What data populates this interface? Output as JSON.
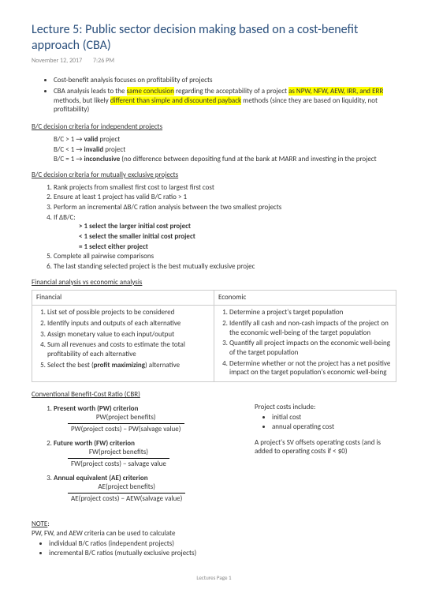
{
  "title": "Lecture 5: Public sector decision making based on a cost-benefit approach (CBA)",
  "date": "November 12, 2017",
  "time": "7:26 PM",
  "top_bullets": [
    "Cost-benefit analysis focuses on profitability of projects",
    "CBA analysis leads to the "
  ],
  "hl1": "same conclusion",
  "mid1": " regarding the acceptability of a project ",
  "hl2": "as NPW, NFW, AEW, IRR, and ERR",
  "mid2": " methods, but likely ",
  "hl3": "different than simple and discounted payback",
  "tail": " methods (since they are based on liquidity, not profitability)",
  "sec_independent": "B/C decision criteria for independent projects",
  "criteria": {
    "valid_pre": "B/C > 1 → ",
    "valid_b": "valid",
    "valid_post": " project",
    "invalid_pre": "B/C < 1 → ",
    "invalid_b": "invalid",
    "invalid_post": " project",
    "inc_pre": "B/C = 1 → ",
    "inc_b": "inconclusive",
    "inc_post": " (no difference between depositing fund at the bank at MARR and investing in the project"
  },
  "sec_mutual": "B/C decision criteria for mutually exclusive projects",
  "mutual_steps": [
    "Rank projects from smallest first cost to largest first cost",
    "Ensure at least 1 project has valid B/C ratio > 1",
    "Perform an incremental ΔB/C ration analysis between the two smallest projects",
    "If ΔB/C:",
    "Complete all pairwise comparisons",
    "The last standing selected project is the best mutually exclusive projec"
  ],
  "delta_rules": {
    "a_pre": "> 1 select the ",
    "a_b": "larger initial cost project",
    "b_pre": "< 1 select the ",
    "b_b": "smaller initial cost project",
    "c_pre": "= 1 select ",
    "c_b": "either project"
  },
  "sec_fa": "Financial analysis vs economic analysis",
  "fa_fin_h": "Financial",
  "fa_eco_h": "Economic",
  "fa_fin": [
    "List set of possible projects to be considered",
    "Identify inputs and outputs of each alternative",
    "Assign monetary value to each input/output",
    "Sum all revenues and costs to estimate the total profitability of each alternative"
  ],
  "fa_fin5_pre": "Select the best (",
  "fa_fin5_b": "profit maximizing",
  "fa_fin5_post": ") alternative",
  "fa_eco": [
    "Determine a project's target population",
    "Identify all cash and non-cash impacts of the project on the economic well-being of the target population",
    "Quantify all project impacts on the economic well-being of the target population",
    "Determine whether or not the project has a net positive impact on the target population's economic well-being"
  ],
  "sec_cbr": "Conventional Benefit-Cost Ratio (CBR)",
  "cbr_items": {
    "pw_t": "Present worth (PW) criterion",
    "pw_num": "PW(project benefits)",
    "pw_den": "PW(project costs) − PW(salvage value)",
    "fw_t": "Future worth (FW) criterion",
    "fw_num": "FW(project benefits)",
    "fw_den": "FW(project costs) − salvage value",
    "ae_t": "Annual equivalent (AE) criterion",
    "ae_num": "AE(project benefits)",
    "ae_den": "AE(project costs) − AEW(salvage value)"
  },
  "right": {
    "pc_title": "Project costs include:",
    "pc1": "initial cost",
    "pc2": "annual operating cost",
    "sv": "A project's SV offsets operating costs (and is added to operating costs if < $0)"
  },
  "note_h": "NOTE",
  "note_colon": ":",
  "note_line": "PW, FW, and AEW criteria can be used to calculate",
  "note_b1": "individual B/C ratios (independent projects)",
  "note_b2": "incremental B/C ratios (mutually exclusive projects)",
  "footer": "Lectures Page 1"
}
